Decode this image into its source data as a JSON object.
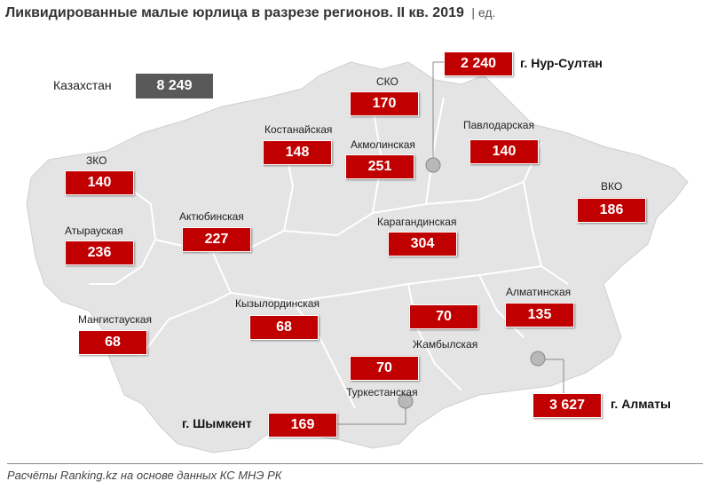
{
  "title": "Ликвидированные малые юрлица в разрезе регионов. II кв. 2019",
  "unit": "| ед.",
  "total": {
    "label": "Казахстан",
    "value": "8 249"
  },
  "regions": {
    "sko": {
      "label": "СКО",
      "value": "170"
    },
    "kostanay": {
      "label": "Костанайская",
      "value": "148"
    },
    "akmola": {
      "label": "Акмолинская",
      "value": "251"
    },
    "pavlodar": {
      "label": "Павлодарская",
      "value": "140"
    },
    "zko": {
      "label": "ЗКО",
      "value": "140"
    },
    "vko": {
      "label": "ВКО",
      "value": "186"
    },
    "atyrau": {
      "label": "Атырауская",
      "value": "236"
    },
    "aktobe": {
      "label": "Актюбинская",
      "value": "227"
    },
    "karaganda": {
      "label": "Карагандинская",
      "value": "304"
    },
    "mangystau": {
      "label": "Мангистауская",
      "value": "68"
    },
    "kyzylorda": {
      "label": "Кызылординская",
      "value": "68"
    },
    "zhambyl": {
      "label": "Жамбылская",
      "value": "70"
    },
    "almaty_reg": {
      "label": "Алматинская",
      "value": "135"
    },
    "turkestan": {
      "label": "Туркестанская",
      "value": "70"
    }
  },
  "cities": {
    "nursultan": {
      "label": "г. Нур-Султан",
      "value": "2 240"
    },
    "almaty": {
      "label": "г. Алматы",
      "value": "3 627"
    },
    "shymkent": {
      "label": "г. Шымкент",
      "value": "169"
    }
  },
  "footer": "Расчёты Ranking.kz на основе данных КС МНЭ РК",
  "colors": {
    "map_fill": "#e6e6e6",
    "border": "#ffffff",
    "value_box": "#c00000",
    "total_box": "#595959"
  }
}
